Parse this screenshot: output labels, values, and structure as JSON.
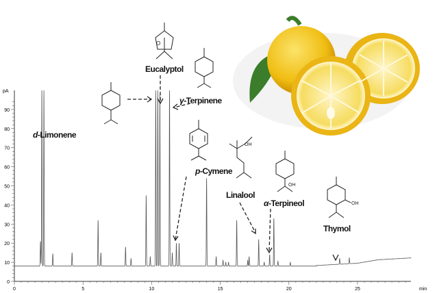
{
  "chart_data": {
    "type": "line",
    "xlabel": "min",
    "ylabel": "pA",
    "xlim": [
      0,
      29
    ],
    "ylim": [
      0,
      100
    ],
    "xticks": [
      "0",
      "5",
      "10",
      "15",
      "20",
      "25"
    ],
    "yticks": [
      "0",
      "10",
      "20",
      "30",
      "40",
      "50",
      "60",
      "70",
      "80",
      "90"
    ],
    "baseline": 8,
    "peaks": [
      [
        1.9,
        21
      ],
      [
        2.0,
        100
      ],
      [
        2.15,
        100
      ],
      [
        2.8,
        14.5
      ],
      [
        4.2,
        15
      ],
      [
        6.1,
        32
      ],
      [
        6.3,
        15
      ],
      [
        8.1,
        18
      ],
      [
        8.5,
        12
      ],
      [
        9.6,
        45
      ],
      [
        9.9,
        13
      ],
      [
        10.3,
        100
      ],
      [
        10.45,
        100
      ],
      [
        10.6,
        98
      ],
      [
        11.3,
        100
      ],
      [
        11.5,
        15
      ],
      [
        11.8,
        20
      ],
      [
        12.0,
        20
      ],
      [
        14.0,
        54
      ],
      [
        14.7,
        13
      ],
      [
        15.2,
        11
      ],
      [
        15.4,
        10
      ],
      [
        15.6,
        10
      ],
      [
        16.2,
        32
      ],
      [
        17.0,
        11
      ],
      [
        17.1,
        13
      ],
      [
        17.8,
        22
      ],
      [
        18.2,
        10
      ],
      [
        18.6,
        14
      ],
      [
        18.9,
        33
      ],
      [
        19.2,
        10.5
      ],
      [
        20.1,
        10
      ],
      [
        23.7,
        11
      ],
      [
        24.4,
        11
      ]
    ],
    "drift": [
      [
        22,
        8.3
      ],
      [
        25,
        9.5
      ],
      [
        26.5,
        11.3
      ],
      [
        28.9,
        12.3
      ]
    ],
    "annotations": [
      {
        "id": "limonene",
        "prefix": "d",
        "text": "-Limonene"
      },
      {
        "id": "eucalyptol",
        "prefix": "",
        "text": "Eucalyptol"
      },
      {
        "id": "terpinene",
        "prefix": "γ",
        "text": "-Terpinene"
      },
      {
        "id": "cymene",
        "prefix": "p",
        "text": "-Cymene"
      },
      {
        "id": "linalool",
        "prefix": "",
        "text": "Linalool"
      },
      {
        "id": "terpineol",
        "prefix": "α",
        "text": "-Terpineol"
      },
      {
        "id": "thymol",
        "prefix": "",
        "text": "Thymol"
      }
    ],
    "oh_label": "OH",
    "o_label": "O",
    "colors": {
      "trace": "#555555",
      "lemon": "#f2c41a",
      "leaf": "#3b7d2a"
    }
  }
}
